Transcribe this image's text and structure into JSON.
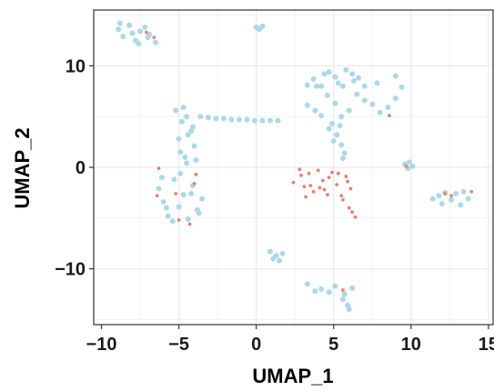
{
  "chart_data": {
    "type": "scatter",
    "title": "",
    "xlabel": "UMAP_1",
    "ylabel": "UMAP_2",
    "xlim": [
      -10.5,
      15.3
    ],
    "ylim": [
      -15.5,
      15.5
    ],
    "x_ticks": [
      -10,
      -5,
      0,
      5,
      10,
      15
    ],
    "x_tick_labels": [
      "−10",
      "−5",
      "0",
      "5",
      "10",
      "15"
    ],
    "y_ticks": [
      10,
      0,
      -10
    ],
    "y_tick_labels": [
      "10",
      "0",
      "−10"
    ],
    "grid": true,
    "legend": "none",
    "colors": {
      "background_cells": "#add8e6",
      "highlighted_cells": "#e8806e",
      "grid": "#ebebeb",
      "panel_border": "#333333"
    },
    "background_clusters": [
      {
        "x": [
          -8.9,
          -8.2,
          -7.5,
          -7.0,
          -6.5,
          -8.6,
          -7.8,
          -7.2,
          -6.9,
          -8.0,
          -8.8,
          -7.6
        ],
        "y": [
          13.6,
          14.0,
          13.4,
          12.8,
          12.3,
          12.9,
          12.5,
          13.8,
          13.1,
          13.2,
          14.2,
          12.2
        ]
      },
      {
        "x": [
          -6.3,
          -6.0,
          -5.7,
          -5.3,
          -5.0,
          -4.7,
          -4.4,
          -4.1,
          -3.8,
          -3.5,
          -6.1,
          -5.4,
          -4.9,
          -4.2,
          -3.7,
          -5.8,
          -4.5
        ],
        "y": [
          -2.1,
          -3.4,
          -4.8,
          -1.2,
          -3.9,
          -2.7,
          -5.1,
          -1.8,
          -4.2,
          -3.1,
          -1.0,
          -5.3,
          -0.6,
          -2.6,
          -4.5,
          -4.0,
          0.4
        ]
      },
      {
        "x": [
          -5.2,
          -4.8,
          -4.4,
          -4.0,
          -4.9,
          -4.5,
          -4.1,
          -5.0,
          -4.6,
          -4.2,
          -3.9,
          -4.7
        ],
        "y": [
          5.6,
          4.5,
          3.2,
          2.1,
          1.5,
          5.0,
          4.0,
          2.8,
          1.0,
          3.6,
          0.7,
          5.9
        ]
      },
      {
        "x": [
          -3.6,
          -3.1,
          -2.6,
          -2.1,
          -1.6,
          -1.1,
          -0.6,
          -0.1,
          0.4,
          0.9,
          1.4
        ],
        "y": [
          5.0,
          4.9,
          4.8,
          4.8,
          4.7,
          4.7,
          4.7,
          4.6,
          4.6,
          4.6,
          4.6
        ]
      },
      {
        "x": [
          0.0,
          0.2,
          0.4
        ],
        "y": [
          13.8,
          13.6,
          13.9
        ]
      },
      {
        "x": [
          3.3,
          4.2,
          5.1,
          6.0,
          7.0,
          8.0,
          9.0,
          4.6,
          5.5,
          6.5,
          7.5,
          8.5,
          3.8,
          9.4,
          7.8,
          9.0
        ],
        "y": [
          6.1,
          5.1,
          6.3,
          5.6,
          6.6,
          5.4,
          6.8,
          7.1,
          5.0,
          7.2,
          6.2,
          5.9,
          5.6,
          7.9,
          8.3,
          9.0
        ]
      },
      {
        "x": [
          4.9,
          5.2,
          5.5,
          5.7,
          5.0,
          5.4,
          4.7,
          5.6
        ],
        "y": [
          4.3,
          3.2,
          2.2,
          1.4,
          2.6,
          4.1,
          3.8,
          0.9
        ]
      },
      {
        "x": [
          3.7,
          4.4,
          5.1,
          5.8,
          6.6,
          3.3,
          4.2,
          5.3,
          6.3,
          7.0,
          5.6,
          4.7,
          3.9,
          6.2
        ],
        "y": [
          8.7,
          9.2,
          8.9,
          9.6,
          8.8,
          8.1,
          8.0,
          8.3,
          8.5,
          8.0,
          8.0,
          9.4,
          8.0,
          9.2
        ]
      },
      {
        "x": [
          9.6,
          9.9,
          10.1,
          9.8
        ],
        "y": [
          0.3,
          0.5,
          0.1,
          -0.1
        ]
      },
      {
        "x": [
          11.4,
          12.0,
          12.6,
          13.2,
          13.7,
          12.2,
          12.9,
          11.8,
          13.4
        ],
        "y": [
          -3.1,
          -3.6,
          -3.2,
          -3.7,
          -3.1,
          -2.5,
          -2.6,
          -2.8,
          -2.4
        ]
      },
      {
        "x": [
          0.9,
          1.3,
          1.7,
          1.1,
          1.5
        ],
        "y": [
          -8.3,
          -8.7,
          -8.5,
          -9.0,
          -9.2
        ]
      },
      {
        "x": [
          3.3,
          4.2,
          5.1,
          5.7,
          6.2,
          4.7,
          5.6,
          5.9,
          6.0,
          3.8
        ],
        "y": [
          -11.5,
          -12.0,
          -11.7,
          -12.5,
          -11.9,
          -12.3,
          -13.0,
          -13.6,
          -14.0,
          -12.2
        ]
      }
    ],
    "highlighted_cells": {
      "x": [
        -7.1,
        -6.6,
        -6.3,
        -6.4,
        -5.2,
        -5.0,
        -4.0,
        -3.9,
        -4.3,
        2.4,
        2.8,
        3.1,
        3.4,
        3.7,
        4.0,
        4.3,
        4.6,
        4.9,
        5.2,
        5.5,
        5.8,
        6.1,
        2.9,
        3.5,
        4.1,
        4.7,
        5.3,
        5.9,
        3.2,
        4.4,
        5.6,
        6.0,
        6.2,
        6.4,
        8.6,
        9.7,
        12.2,
        12.6,
        13.9,
        5.6
      ],
      "y": [
        13.3,
        12.8,
        -0.1,
        -2.8,
        -2.6,
        -5.2,
        -1.6,
        -0.7,
        -5.6,
        -1.5,
        -0.2,
        -1.9,
        -0.6,
        -2.4,
        -0.3,
        -1.3,
        -2.7,
        -0.5,
        -1.7,
        -2.8,
        -0.9,
        -2.1,
        -0.8,
        -1.8,
        -2.0,
        -1.0,
        -0.6,
        -1.4,
        -2.9,
        -2.2,
        -3.2,
        -4.0,
        -4.4,
        -4.9,
        5.1,
        0.1,
        -2.6,
        -2.8,
        -2.4,
        -12.1
      ]
    }
  }
}
